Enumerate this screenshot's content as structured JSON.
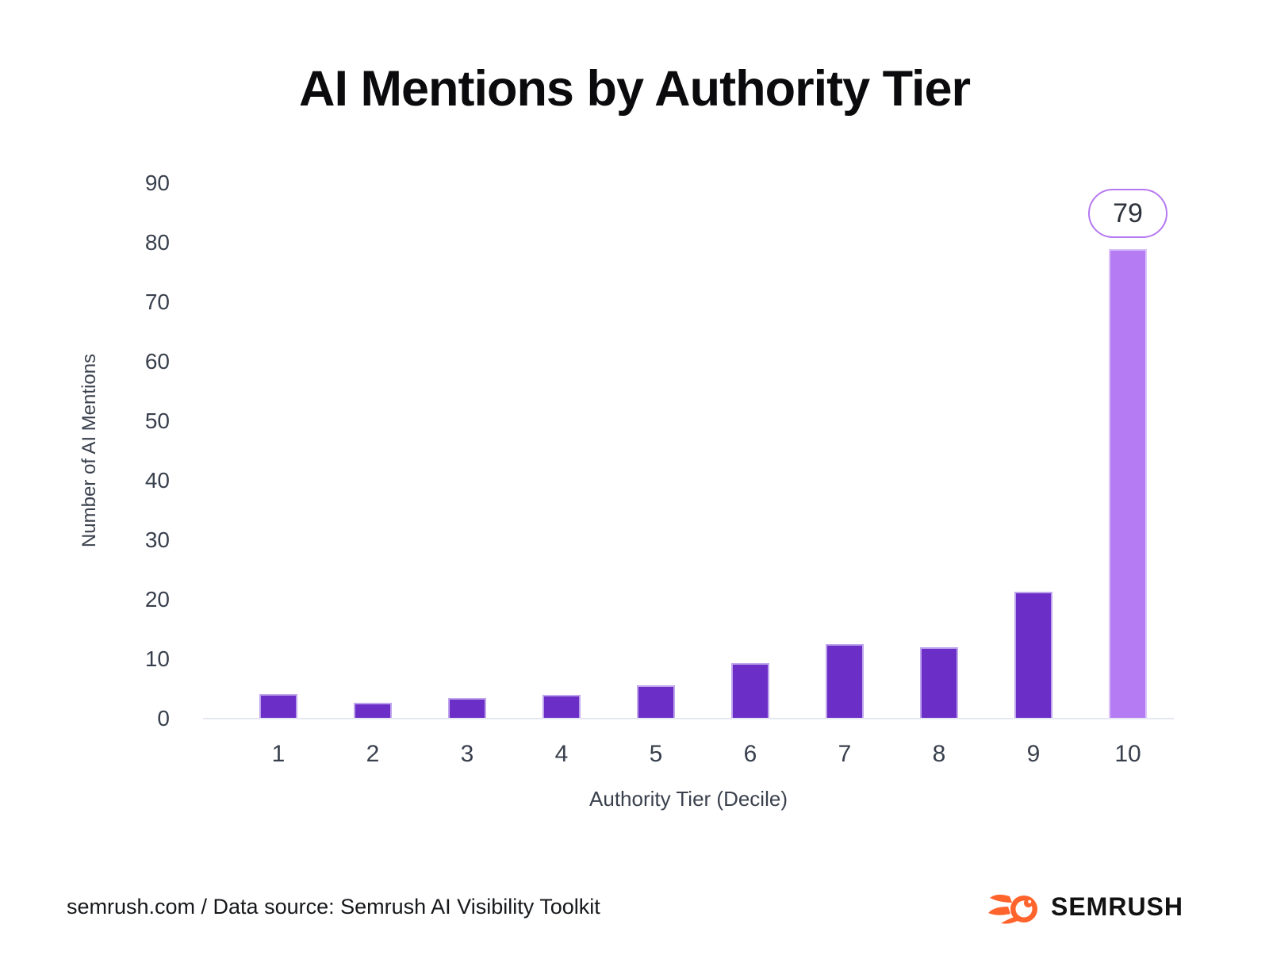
{
  "chart_data": {
    "type": "bar",
    "title": "AI Mentions by Authority Tier",
    "xlabel": "Authority Tier (Decile)",
    "ylabel": "Number of AI Mentions",
    "categories": [
      "1",
      "2",
      "3",
      "4",
      "5",
      "6",
      "7",
      "8",
      "9",
      "10"
    ],
    "values": [
      4.2,
      2.7,
      3.5,
      4.0,
      5.6,
      9.4,
      12.5,
      12.0,
      21.3,
      79
    ],
    "ylim": [
      0,
      90
    ],
    "yticks": [
      0,
      10,
      20,
      30,
      40,
      50,
      60,
      70,
      80,
      90
    ],
    "grid": false,
    "legend": "none",
    "bar_color": "#6B2EC7",
    "highlight_bar_index": 9,
    "highlight_bar_color": "#B57BF2",
    "annotation": {
      "text": "79",
      "bar_index": 9
    }
  },
  "footer": {
    "source_text": "semrush.com / Data source: Semrush AI Visibility Toolkit",
    "brand": "SEMRUSH",
    "brand_icon": "semrush-comet-icon"
  },
  "colors": {
    "accent_dark": "#6B2EC7",
    "accent_light": "#B57BF2",
    "callout_border": "#B678F0",
    "axis_line": "#E5E8F1",
    "tick_text": "#39404D",
    "title_text": "#0B0B0D",
    "brand_orange": "#FF642D"
  }
}
